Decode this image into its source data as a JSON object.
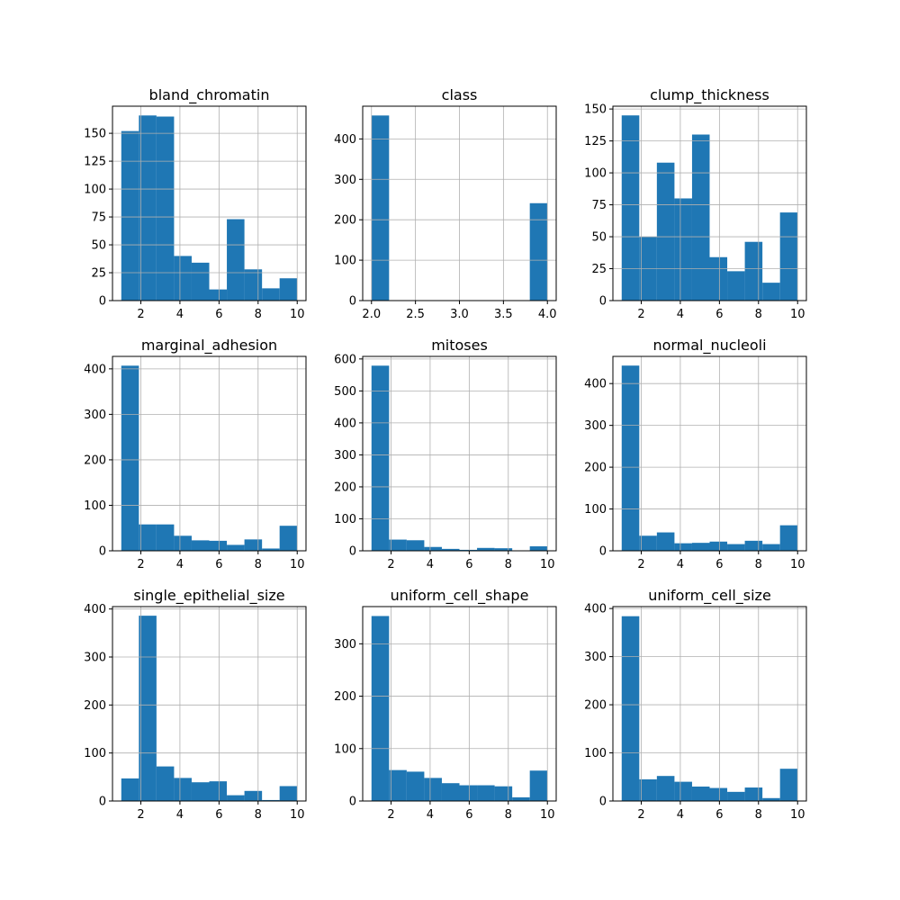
{
  "colors": {
    "bar": "#1f77b4",
    "grid": "#b0b0b0",
    "axis": "#000000",
    "background": "#ffffff"
  },
  "chart_data": [
    {
      "type": "bar",
      "title": "bland_chromatin",
      "bin_edges": [
        1,
        1.9,
        2.8,
        3.7,
        4.6,
        5.5,
        6.4,
        7.3,
        8.2,
        9.1,
        10
      ],
      "values": [
        152,
        166,
        165,
        40,
        34,
        10,
        73,
        28,
        11,
        20
      ],
      "xlim": [
        0.55,
        10.45
      ],
      "ylim": [
        0,
        174.3
      ],
      "xticks": [
        2,
        4,
        6,
        8,
        10
      ],
      "xtick_labels": [
        "2",
        "4",
        "6",
        "8",
        "10"
      ],
      "yticks": [
        0,
        25,
        50,
        75,
        100,
        125,
        150
      ],
      "ytick_labels": [
        "0",
        "25",
        "50",
        "75",
        "100",
        "125",
        "150"
      ],
      "grid": true
    },
    {
      "type": "bar",
      "title": "class",
      "bin_edges": [
        2,
        2.2,
        2.4,
        2.6,
        2.8,
        3.0,
        3.2,
        3.4,
        3.6,
        3.8,
        4.0
      ],
      "values": [
        458,
        0,
        0,
        0,
        0,
        0,
        0,
        0,
        0,
        241
      ],
      "xlim": [
        1.9,
        4.1
      ],
      "ylim": [
        0,
        481
      ],
      "xticks": [
        2.0,
        2.5,
        3.0,
        3.5,
        4.0
      ],
      "xtick_labels": [
        "2.0",
        "2.5",
        "3.0",
        "3.5",
        "4.0"
      ],
      "yticks": [
        0,
        100,
        200,
        300,
        400
      ],
      "ytick_labels": [
        "0",
        "100",
        "200",
        "300",
        "400"
      ],
      "grid": true
    },
    {
      "type": "bar",
      "title": "clump_thickness",
      "bin_edges": [
        1,
        1.9,
        2.8,
        3.7,
        4.6,
        5.5,
        6.4,
        7.3,
        8.2,
        9.1,
        10
      ],
      "values": [
        145,
        50,
        108,
        80,
        130,
        34,
        23,
        46,
        14,
        69
      ],
      "xlim": [
        0.55,
        10.45
      ],
      "ylim": [
        0,
        152.2
      ],
      "xticks": [
        2,
        4,
        6,
        8,
        10
      ],
      "xtick_labels": [
        "2",
        "4",
        "6",
        "8",
        "10"
      ],
      "yticks": [
        0,
        25,
        50,
        75,
        100,
        125,
        150
      ],
      "ytick_labels": [
        "0",
        "25",
        "50",
        "75",
        "100",
        "125",
        "150"
      ],
      "grid": true
    },
    {
      "type": "bar",
      "title": "marginal_adhesion",
      "bin_edges": [
        1,
        1.9,
        2.8,
        3.7,
        4.6,
        5.5,
        6.4,
        7.3,
        8.2,
        9.1,
        10
      ],
      "values": [
        407,
        58,
        58,
        33,
        23,
        22,
        13,
        25,
        5,
        55
      ],
      "xlim": [
        0.55,
        10.45
      ],
      "ylim": [
        0,
        427.4
      ],
      "xticks": [
        2,
        4,
        6,
        8,
        10
      ],
      "xtick_labels": [
        "2",
        "4",
        "6",
        "8",
        "10"
      ],
      "yticks": [
        0,
        100,
        200,
        300,
        400
      ],
      "ytick_labels": [
        "0",
        "100",
        "200",
        "300",
        "400"
      ],
      "grid": true
    },
    {
      "type": "bar",
      "title": "mitoses",
      "bin_edges": [
        1,
        1.9,
        2.8,
        3.7,
        4.6,
        5.5,
        6.4,
        7.3,
        8.2,
        9.1,
        10
      ],
      "values": [
        579,
        35,
        33,
        12,
        6,
        3,
        9,
        8,
        0,
        14
      ],
      "xlim": [
        0.55,
        10.45
      ],
      "ylim": [
        0,
        608
      ],
      "xticks": [
        2,
        4,
        6,
        8,
        10
      ],
      "xtick_labels": [
        "2",
        "4",
        "6",
        "8",
        "10"
      ],
      "yticks": [
        0,
        100,
        200,
        300,
        400,
        500,
        600
      ],
      "ytick_labels": [
        "0",
        "100",
        "200",
        "300",
        "400",
        "500",
        "600"
      ],
      "grid": true
    },
    {
      "type": "bar",
      "title": "normal_nucleoli",
      "bin_edges": [
        1,
        1.9,
        2.8,
        3.7,
        4.6,
        5.5,
        6.4,
        7.3,
        8.2,
        9.1,
        10
      ],
      "values": [
        443,
        36,
        44,
        18,
        19,
        22,
        16,
        24,
        16,
        61
      ],
      "xlim": [
        0.55,
        10.45
      ],
      "ylim": [
        0,
        465
      ],
      "xticks": [
        2,
        4,
        6,
        8,
        10
      ],
      "xtick_labels": [
        "2",
        "4",
        "6",
        "8",
        "10"
      ],
      "yticks": [
        0,
        100,
        200,
        300,
        400
      ],
      "ytick_labels": [
        "0",
        "100",
        "200",
        "300",
        "400"
      ],
      "grid": true
    },
    {
      "type": "bar",
      "title": "single_epithelial_size",
      "bin_edges": [
        1,
        1.9,
        2.8,
        3.7,
        4.6,
        5.5,
        6.4,
        7.3,
        8.2,
        9.1,
        10
      ],
      "values": [
        47,
        386,
        72,
        48,
        39,
        41,
        12,
        21,
        2,
        31
      ],
      "xlim": [
        0.55,
        10.45
      ],
      "ylim": [
        0,
        405
      ],
      "xticks": [
        2,
        4,
        6,
        8,
        10
      ],
      "xtick_labels": [
        "2",
        "4",
        "6",
        "8",
        "10"
      ],
      "yticks": [
        0,
        100,
        200,
        300,
        400
      ],
      "ytick_labels": [
        "0",
        "100",
        "200",
        "300",
        "400"
      ],
      "grid": true
    },
    {
      "type": "bar",
      "title": "uniform_cell_shape",
      "bin_edges": [
        1,
        1.9,
        2.8,
        3.7,
        4.6,
        5.5,
        6.4,
        7.3,
        8.2,
        9.1,
        10
      ],
      "values": [
        353,
        59,
        56,
        44,
        34,
        30,
        30,
        28,
        7,
        58
      ],
      "xlim": [
        0.55,
        10.45
      ],
      "ylim": [
        0,
        371
      ],
      "xticks": [
        2,
        4,
        6,
        8,
        10
      ],
      "xtick_labels": [
        "2",
        "4",
        "6",
        "8",
        "10"
      ],
      "yticks": [
        0,
        100,
        200,
        300
      ],
      "ytick_labels": [
        "0",
        "100",
        "200",
        "300"
      ],
      "grid": true
    },
    {
      "type": "bar",
      "title": "uniform_cell_size",
      "bin_edges": [
        1,
        1.9,
        2.8,
        3.7,
        4.6,
        5.5,
        6.4,
        7.3,
        8.2,
        9.1,
        10
      ],
      "values": [
        384,
        45,
        52,
        40,
        30,
        27,
        19,
        28,
        6,
        67
      ],
      "xlim": [
        0.55,
        10.45
      ],
      "ylim": [
        0,
        404
      ],
      "xticks": [
        2,
        4,
        6,
        8,
        10
      ],
      "xtick_labels": [
        "2",
        "4",
        "6",
        "8",
        "10"
      ],
      "yticks": [
        0,
        100,
        200,
        300,
        400
      ],
      "ytick_labels": [
        "0",
        "100",
        "200",
        "300",
        "400"
      ],
      "grid": true
    }
  ]
}
